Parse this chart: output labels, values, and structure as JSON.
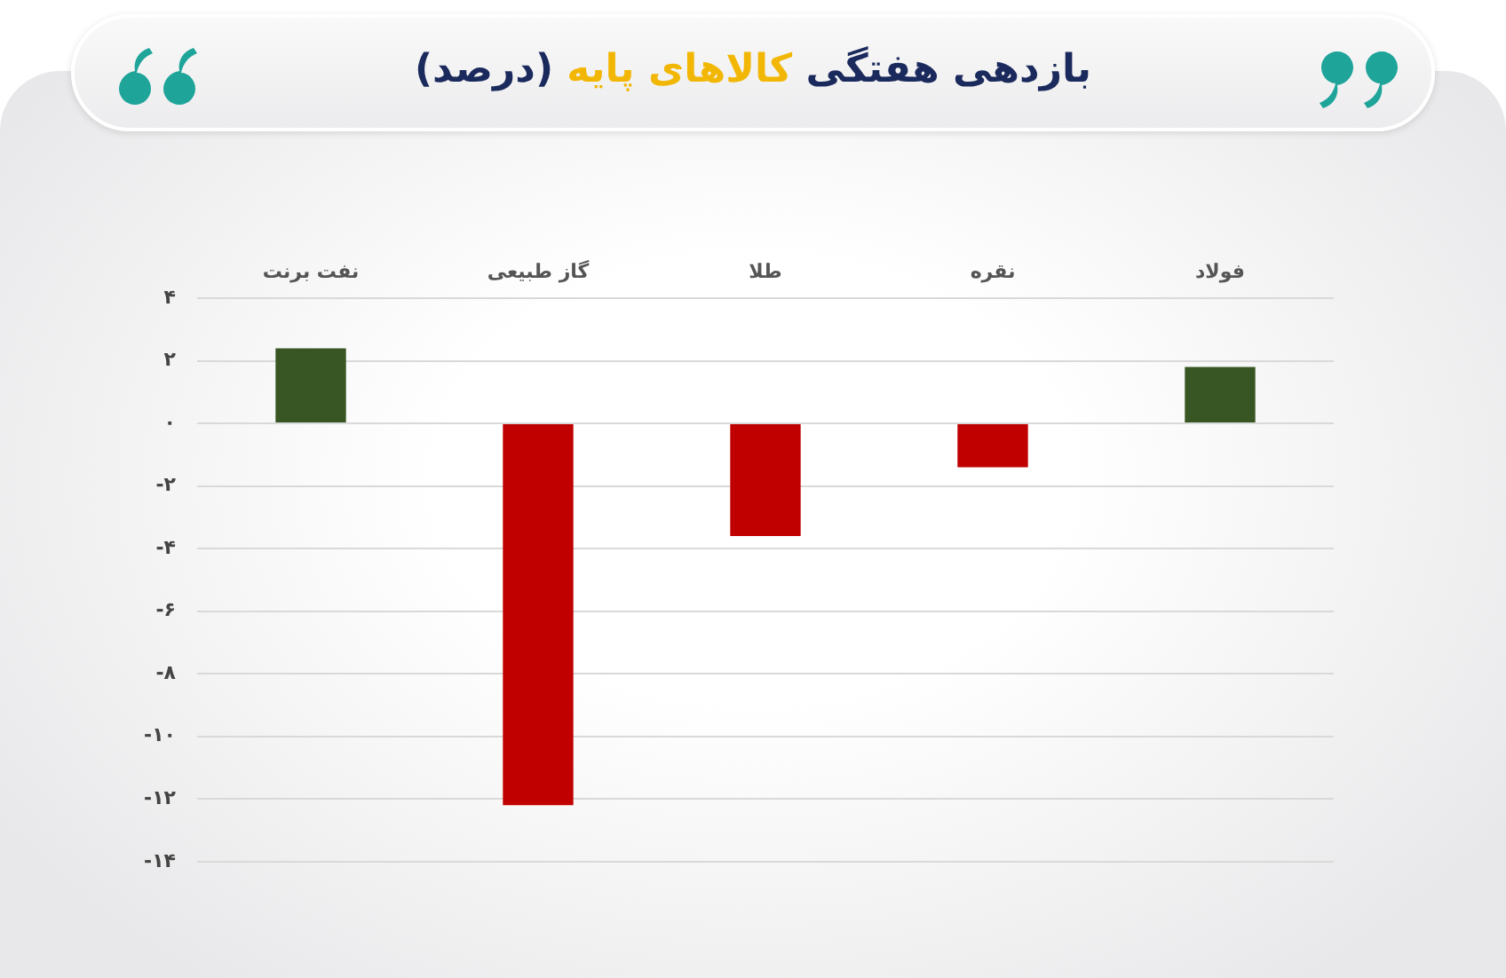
{
  "chart_data": {
    "type": "bar",
    "title": "بازدهی هفتگی کالاهای پایه (درصد)",
    "categories": [
      "نفت برنت",
      "گاز طبیعی",
      "طلا",
      "نقره",
      "فولاد"
    ],
    "values": [
      2.4,
      -12.2,
      -3.6,
      -1.4,
      1.8
    ],
    "colors": [
      "#375623",
      "#c00000",
      "#c00000",
      "#c00000",
      "#375623"
    ],
    "ylim": [
      -14,
      4
    ],
    "yticks": [
      {
        "value": 4,
        "label": "۴"
      },
      {
        "value": 2,
        "label": "۲"
      },
      {
        "value": 0,
        "label": "۰"
      },
      {
        "value": -2,
        "label": "-۲"
      },
      {
        "value": -4,
        "label": "-۴"
      },
      {
        "value": -6,
        "label": "-۶"
      },
      {
        "value": -8,
        "label": "-۸"
      },
      {
        "value": -10,
        "label": "-۱۰"
      },
      {
        "value": -12,
        "label": "-۱۲"
      },
      {
        "value": -14,
        "label": "-۱۴"
      }
    ],
    "grid": "y"
  }
}
